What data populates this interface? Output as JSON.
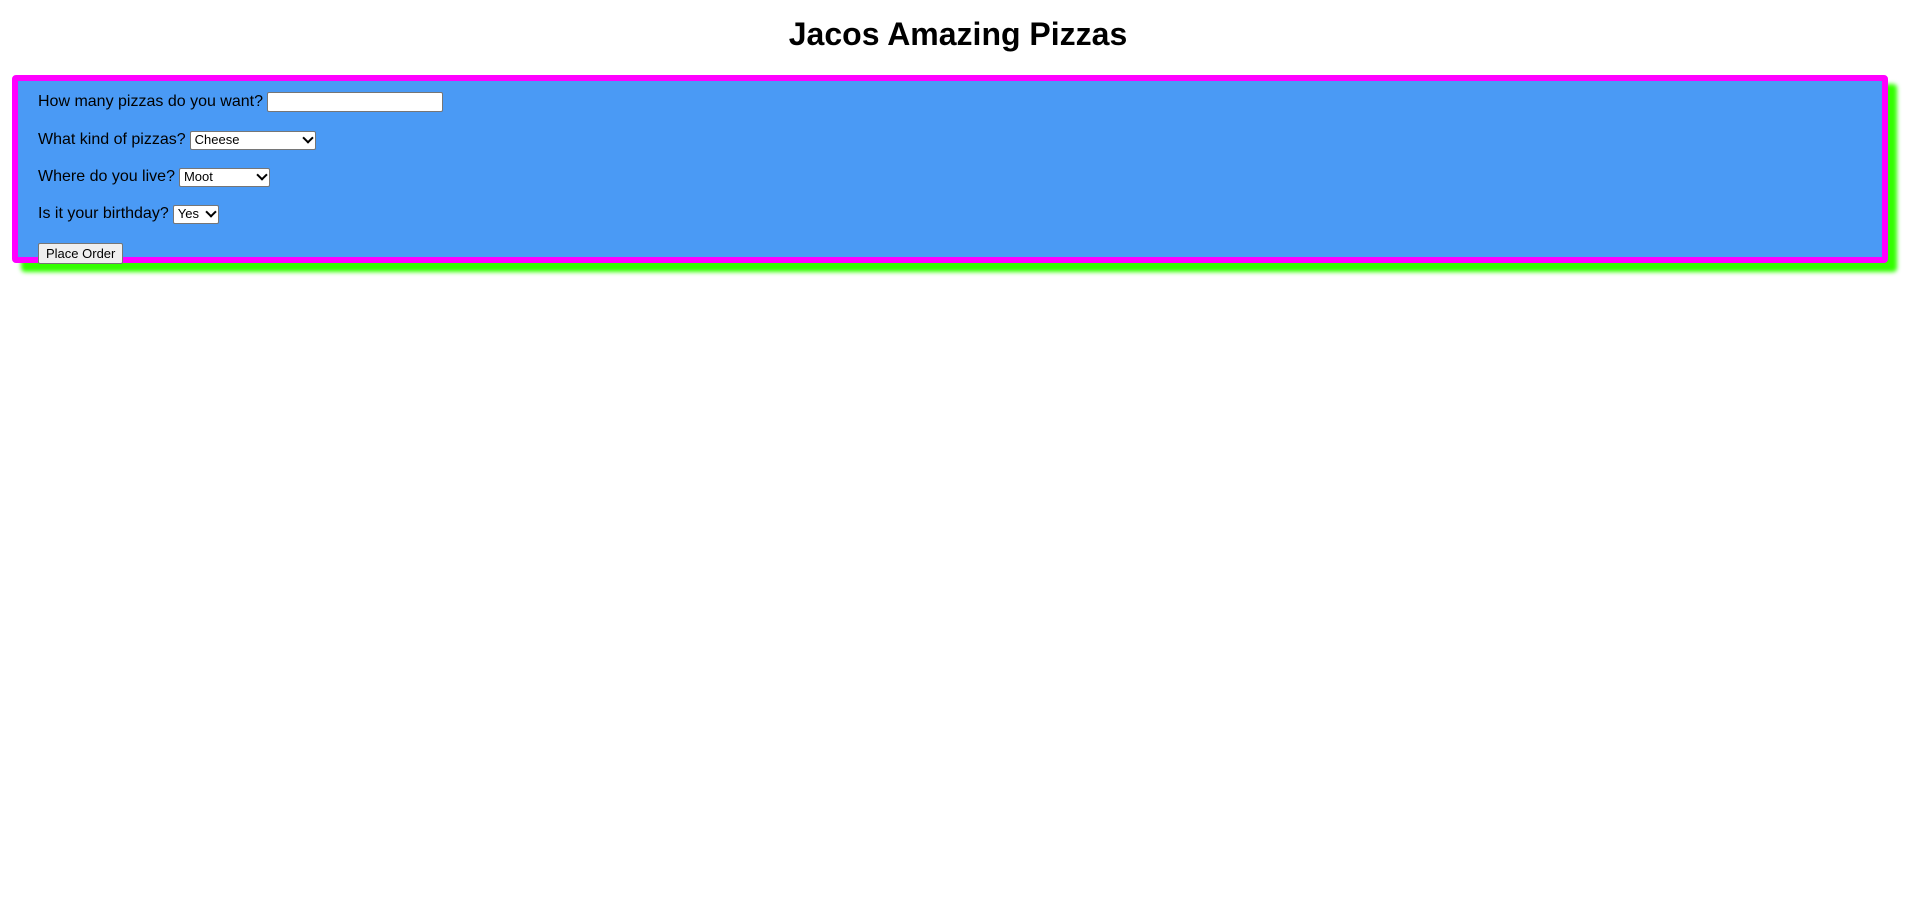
{
  "page": {
    "title": "Jacos Amazing Pizzas"
  },
  "form": {
    "quantity": {
      "label": "How many pizzas do you want?",
      "value": ""
    },
    "kind": {
      "label": "What kind of pizzas?",
      "selected": "Cheese"
    },
    "location": {
      "label": "Where do you live?",
      "selected": "Moot"
    },
    "birthday": {
      "label": "Is it your birthday?",
      "selected": "Yes"
    },
    "submit_label": "Place Order"
  },
  "colors": {
    "panel_background": "#4a9af5",
    "panel_border": "#ff00ff",
    "panel_shadow": "#33ff00"
  },
  "icons": {
    "select_arrow": "chevron-down-icon"
  }
}
